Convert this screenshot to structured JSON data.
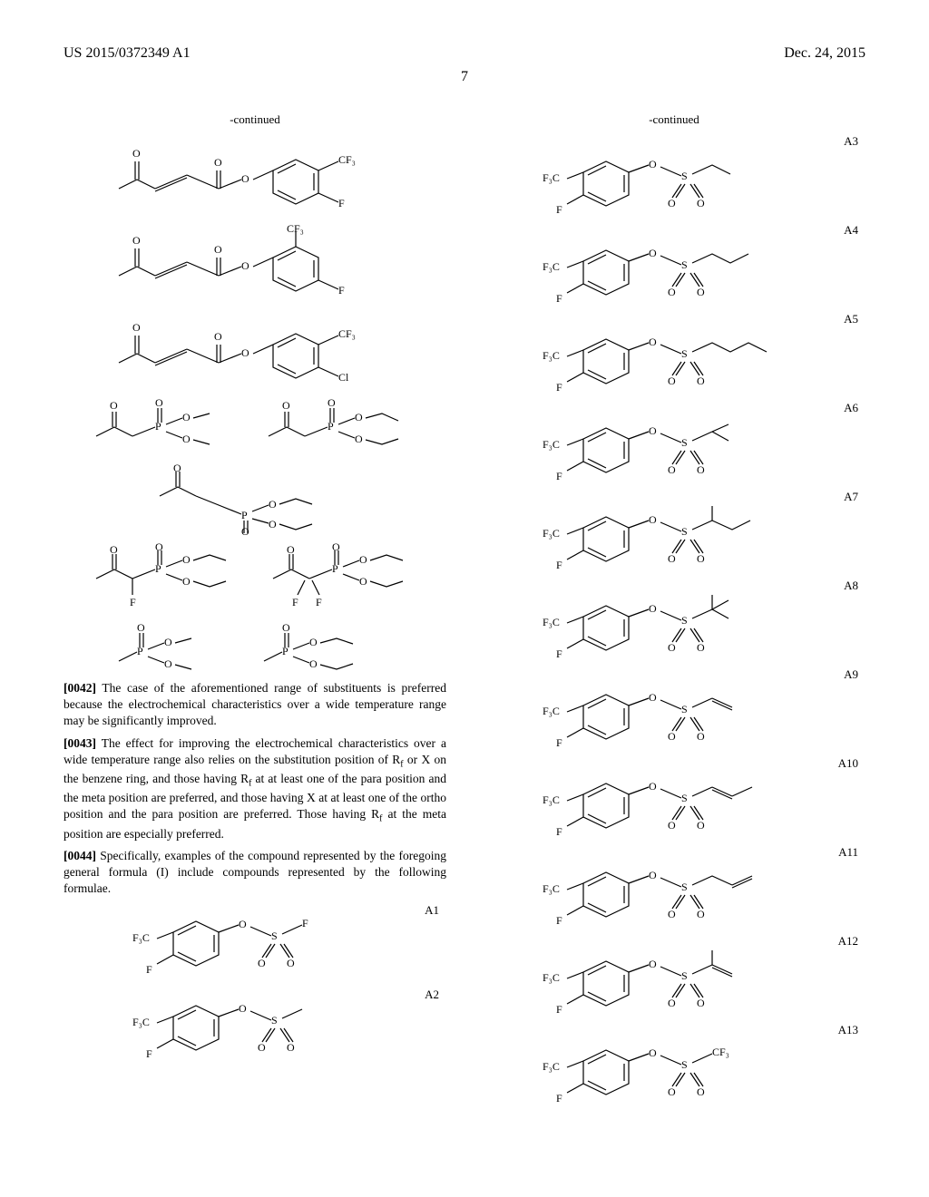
{
  "header": {
    "left": "US 2015/0372349 A1",
    "right": "Dec. 24, 2015"
  },
  "page_number": "7",
  "continued_label": "-continued",
  "left_column": {
    "para42_num": "[0042]",
    "para42_text": "  The case of the aforementioned range of substituents is preferred because the electrochemical characteristics over a wide temperature range may be significantly improved.",
    "para43_num": "[0043]",
    "para43_text": "  The effect for improving the electrochemical characteristics over a wide temperature range also relies on the substitution position of R",
    "para43_sub1": "f",
    "para43_text2": " or X on the benzene ring, and those having R",
    "para43_sub2": "f",
    "para43_text3": " at at least one of the para position and the meta position are preferred, and those having X at at least one of the ortho position and the para position are preferred. Those having R",
    "para43_sub3": "f",
    "para43_text4": " at the meta position are especially preferred.",
    "para44_num": "[0044]",
    "para44_text": "  Specifically, examples of the compound represented by the foregoing general formula (I) include compounds represented by the following formulae."
  },
  "compounds_left": [
    {
      "label": "A1"
    },
    {
      "label": "A2"
    }
  ],
  "compounds_right": [
    {
      "label": "A3"
    },
    {
      "label": "A4"
    },
    {
      "label": "A5"
    },
    {
      "label": "A6"
    },
    {
      "label": "A7"
    },
    {
      "label": "A8"
    },
    {
      "label": "A9"
    },
    {
      "label": "A10"
    },
    {
      "label": "A11"
    },
    {
      "label": "A12"
    },
    {
      "label": "A13"
    }
  ],
  "style": {
    "stroke": "#000000",
    "stroke_width": 1.2,
    "text_color": "#000000",
    "font_size_label": 13,
    "font_size_atom": 12
  }
}
